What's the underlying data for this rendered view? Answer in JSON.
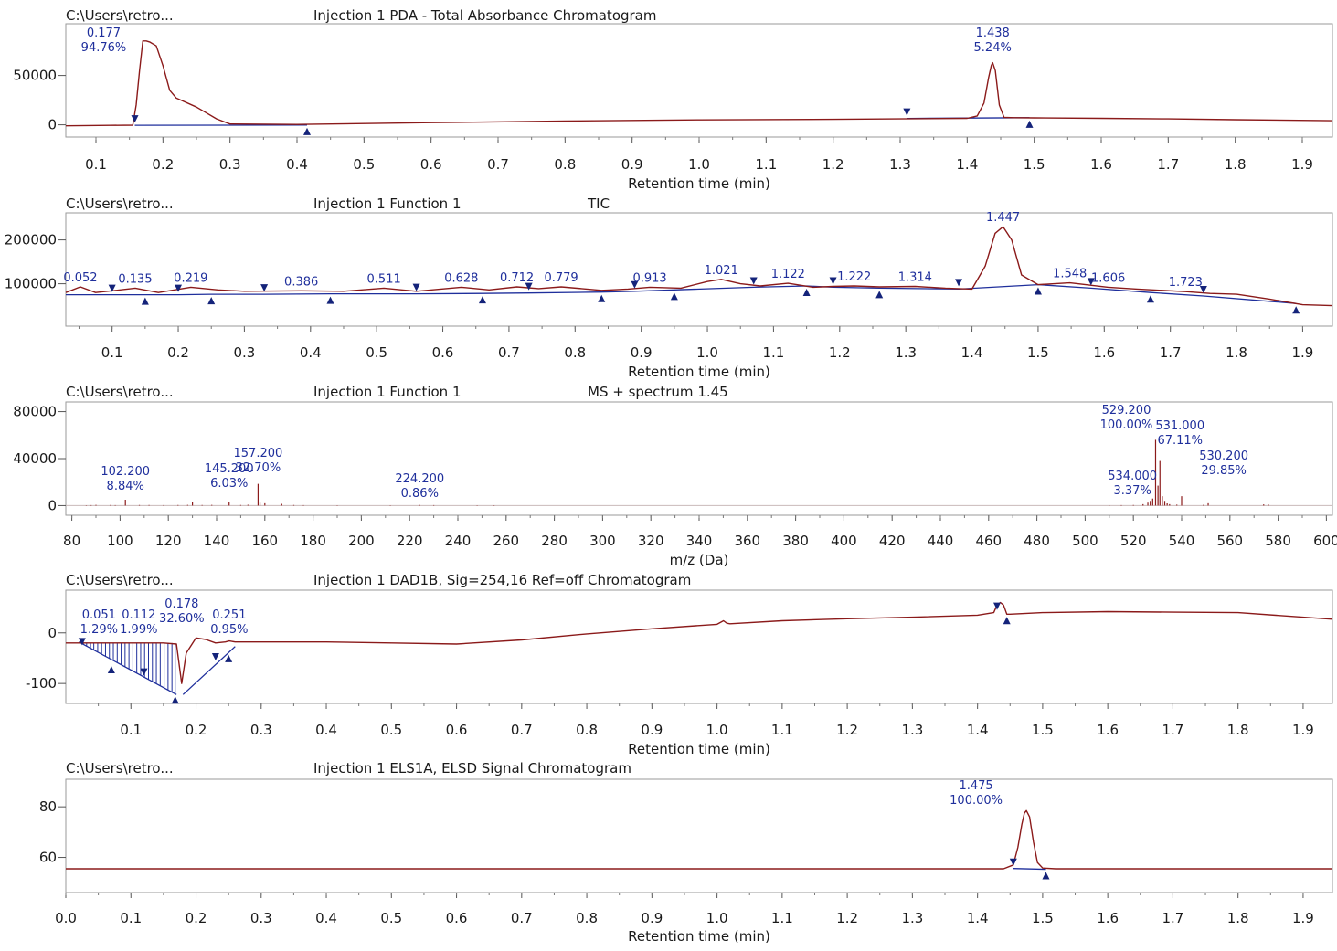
{
  "colors": {
    "trace": "#8b1a1a",
    "baseline": "#1f2f9c",
    "marker": "#14237a",
    "annotation": "#1f2f9c",
    "text": "#1a1a1a",
    "frame": "#9a9a9a"
  },
  "chart_data": [
    {
      "type": "line",
      "path": "C:\\Users\\retro...",
      "title": "Injection 1  PDA - Total Absorbance Chromatogram",
      "xlabel": "Retention time (min)",
      "xlim": [
        0.055,
        1.945
      ],
      "ylim": [
        -5000,
        95000
      ],
      "xticks": [
        "0.1",
        "0.2",
        "0.3",
        "0.4",
        "0.5",
        "0.6",
        "0.7",
        "0.8",
        "0.9",
        "1.0",
        "1.1",
        "1.2",
        "1.3",
        "1.4",
        "1.5",
        "1.6",
        "1.7",
        "1.8",
        "1.9"
      ],
      "yticks": [
        "0",
        "50000"
      ],
      "x": [
        0.055,
        0.12,
        0.155,
        0.16,
        0.165,
        0.17,
        0.175,
        0.18,
        0.19,
        0.2,
        0.21,
        0.22,
        0.25,
        0.28,
        0.3,
        0.4,
        0.6,
        0.8,
        1.0,
        1.2,
        1.4,
        1.415,
        1.425,
        1.432,
        1.436,
        1.438,
        1.442,
        1.448,
        1.455,
        1.47,
        1.5,
        1.6,
        1.7,
        1.8,
        1.945
      ],
      "y": [
        -1000,
        -600,
        -400,
        20000,
        55000,
        85000,
        85000,
        84000,
        80000,
        60000,
        35000,
        27000,
        18000,
        6000,
        800,
        400,
        2200,
        3800,
        5000,
        5600,
        6600,
        9000,
        22000,
        48000,
        60000,
        63000,
        55000,
        20000,
        7500,
        7200,
        7000,
        6600,
        6000,
        5200,
        4200
      ],
      "baselines": [
        {
          "x": [
            0.158,
            0.415
          ],
          "y": [
            -500,
            -300
          ]
        },
        {
          "x": [
            1.31,
            1.493
          ],
          "y": [
            6500,
            7200
          ]
        }
      ],
      "markers": [
        {
          "x": 0.158,
          "y": -500
        },
        {
          "x": 0.415,
          "y": -300
        },
        {
          "x": 1.31,
          "y": 6500
        },
        {
          "x": 1.493,
          "y": 7200
        }
      ],
      "annotations": [
        {
          "label": "0.177",
          "sub": "94.76%",
          "x": 0.177
        },
        {
          "label": "1.438",
          "sub": "5.24%",
          "x": 1.438
        }
      ]
    },
    {
      "type": "line",
      "path": "C:\\Users\\retro...",
      "title": "Injection 1 Function 1",
      "title2": "TIC",
      "xlabel": "Retention time (min)",
      "xlim": [
        0.03,
        1.945
      ],
      "ylim": [
        20000,
        245000
      ],
      "xticks": [
        "0.1",
        "0.2",
        "0.3",
        "0.4",
        "0.5",
        "0.6",
        "0.7",
        "0.8",
        "0.9",
        "1.0",
        "1.1",
        "1.2",
        "1.3",
        "1.4",
        "1.5",
        "1.6",
        "1.7",
        "1.8",
        "1.9"
      ],
      "yticks": [
        "100000",
        "200000"
      ],
      "x": [
        0.03,
        0.052,
        0.075,
        0.1,
        0.135,
        0.17,
        0.219,
        0.26,
        0.3,
        0.386,
        0.45,
        0.511,
        0.56,
        0.628,
        0.67,
        0.712,
        0.745,
        0.779,
        0.84,
        0.88,
        0.913,
        0.96,
        1.0,
        1.021,
        1.05,
        1.08,
        1.122,
        1.16,
        1.19,
        1.222,
        1.26,
        1.314,
        1.36,
        1.4,
        1.42,
        1.435,
        1.447,
        1.46,
        1.475,
        1.5,
        1.548,
        1.606,
        1.65,
        1.723,
        1.76,
        1.8,
        1.85,
        1.9,
        1.945
      ],
      "y": [
        80000,
        93000,
        80000,
        84000,
        90000,
        80000,
        92000,
        86000,
        83000,
        84000,
        83000,
        90000,
        83000,
        92000,
        86000,
        93000,
        89000,
        93000,
        85000,
        88000,
        92000,
        90000,
        105000,
        110000,
        100000,
        95000,
        101000,
        92000,
        94000,
        95000,
        93000,
        94000,
        90000,
        88000,
        140000,
        215000,
        230000,
        200000,
        120000,
        98000,
        102000,
        92000,
        88000,
        82000,
        78000,
        76000,
        65000,
        52000,
        50000
      ],
      "baselines": [
        {
          "x": [
            0.03,
            0.1,
            0.15,
            0.2,
            0.25,
            0.33,
            0.43,
            0.56,
            0.66,
            0.73,
            0.84,
            0.89,
            0.95,
            1.07,
            1.15,
            1.19,
            1.26,
            1.38,
            1.5,
            1.58,
            1.67,
            1.75,
            1.89
          ],
          "y": [
            75000,
            75000,
            75000,
            75000,
            76000,
            76000,
            77000,
            77000,
            78000,
            79000,
            81000,
            83000,
            86000,
            92000,
            95000,
            92000,
            90000,
            88000,
            98000,
            90000,
            80000,
            72000,
            55000
          ]
        }
      ],
      "markers": [
        {
          "x": 0.1,
          "y": 75000
        },
        {
          "x": 0.15,
          "y": 75000
        },
        {
          "x": 0.2,
          "y": 75000
        },
        {
          "x": 0.25,
          "y": 76000
        },
        {
          "x": 0.33,
          "y": 76000
        },
        {
          "x": 0.43,
          "y": 77000
        },
        {
          "x": 0.56,
          "y": 77000
        },
        {
          "x": 0.66,
          "y": 78000
        },
        {
          "x": 0.73,
          "y": 79000
        },
        {
          "x": 0.84,
          "y": 81000
        },
        {
          "x": 0.89,
          "y": 83000
        },
        {
          "x": 0.95,
          "y": 86000
        },
        {
          "x": 1.07,
          "y": 92000
        },
        {
          "x": 1.15,
          "y": 95000
        },
        {
          "x": 1.19,
          "y": 92000
        },
        {
          "x": 1.26,
          "y": 90000
        },
        {
          "x": 1.38,
          "y": 88000
        },
        {
          "x": 1.5,
          "y": 98000
        },
        {
          "x": 1.58,
          "y": 90000
        },
        {
          "x": 1.67,
          "y": 80000
        },
        {
          "x": 1.75,
          "y": 72000
        },
        {
          "x": 1.89,
          "y": 55000
        }
      ],
      "annotations": [
        {
          "label": "0.052",
          "x": 0.052
        },
        {
          "label": "0.135",
          "x": 0.135
        },
        {
          "label": "0.219",
          "x": 0.219
        },
        {
          "label": "0.386",
          "x": 0.386
        },
        {
          "label": "0.511",
          "x": 0.511
        },
        {
          "label": "0.628",
          "x": 0.628
        },
        {
          "label": "0.712",
          "x": 0.712
        },
        {
          "label": "0.779",
          "x": 0.779
        },
        {
          "label": "0.913",
          "x": 0.913
        },
        {
          "label": "1.021",
          "x": 1.021
        },
        {
          "label": "1.122",
          "x": 1.122
        },
        {
          "label": "1.222",
          "x": 1.222
        },
        {
          "label": "1.314",
          "x": 1.314
        },
        {
          "label": "1.447",
          "x": 1.447
        },
        {
          "label": "1.548",
          "x": 1.548
        },
        {
          "label": "1.606",
          "x": 1.606
        },
        {
          "label": "1.723",
          "x": 1.723
        }
      ]
    },
    {
      "type": "bar",
      "path": "C:\\Users\\retro...",
      "title": "Injection 1 Function 1",
      "title2": "MS + spectrum 1.45",
      "xlabel": "m/z (Da)",
      "xlim": [
        77.5,
        602.5
      ],
      "ylim": [
        -2000,
        82000
      ],
      "xticks": [
        "80",
        "100",
        "120",
        "140",
        "160",
        "180",
        "200",
        "220",
        "240",
        "260",
        "280",
        "300",
        "320",
        "340",
        "360",
        "380",
        "400",
        "420",
        "440",
        "460",
        "480",
        "500",
        "520",
        "540",
        "560",
        "580",
        "600"
      ],
      "yticks": [
        "0",
        "40000",
        "80000"
      ],
      "x": [
        86,
        88,
        90,
        96,
        98,
        102.2,
        108,
        112,
        118,
        124,
        128,
        130,
        134,
        138,
        145.2,
        150,
        153,
        157.2,
        158,
        160,
        167,
        172,
        176,
        190,
        212,
        224.2,
        230,
        248,
        255,
        510,
        515,
        520,
        524,
        526,
        527,
        528,
        529.2,
        530.2,
        531,
        532,
        533,
        534,
        535,
        538,
        540,
        549,
        551,
        574,
        576
      ],
      "y": [
        300,
        400,
        600,
        500,
        400,
        5000,
        500,
        500,
        400,
        500,
        600,
        3000,
        500,
        600,
        3400,
        500,
        700,
        18500,
        2500,
        2000,
        1500,
        500,
        400,
        300,
        300,
        500,
        400,
        300,
        300,
        300,
        400,
        500,
        1200,
        2500,
        4000,
        6000,
        56000,
        17000,
        38000,
        8000,
        4000,
        1900,
        1200,
        800,
        8000,
        600,
        2000,
        1000,
        800
      ],
      "annotations": [
        {
          "label": "102.200",
          "sub": "8.84%",
          "x": 102.2
        },
        {
          "label": "145.200",
          "sub": "6.03%",
          "x": 145.2
        },
        {
          "label": "157.200",
          "sub": "32.70%",
          "x": 157.2
        },
        {
          "label": "224.200",
          "sub": "0.86%",
          "x": 224.2
        },
        {
          "label": "529.200",
          "sub": "100.00%",
          "x": 529.2
        },
        {
          "label": "531.000",
          "sub": "67.11%",
          "x": 531
        },
        {
          "label": "530.200",
          "sub": "29.85%",
          "x": 530.2
        },
        {
          "label": "534.000",
          "sub": "3.37%",
          "x": 534
        }
      ]
    },
    {
      "type": "line",
      "path": "C:\\Users\\retro...",
      "title": "Injection 1 DAD1B, Sig=254,16  Ref=off Chromatogram",
      "xlabel": "Retention time (min)",
      "xlim": [
        0.0,
        1.945
      ],
      "ylim": [
        -125,
        70
      ],
      "xticks": [
        "0.1",
        "0.2",
        "0.3",
        "0.4",
        "0.5",
        "0.6",
        "0.7",
        "0.8",
        "0.9",
        "1.0",
        "1.1",
        "1.2",
        "1.3",
        "1.4",
        "1.5",
        "1.6",
        "1.7",
        "1.8",
        "1.9"
      ],
      "yticks": [
        "-100",
        "0"
      ],
      "x": [
        0,
        0.05,
        0.1,
        0.15,
        0.17,
        0.178,
        0.185,
        0.2,
        0.215,
        0.23,
        0.245,
        0.251,
        0.26,
        0.3,
        0.4,
        0.5,
        0.6,
        0.7,
        0.8,
        0.9,
        1.0,
        1.01,
        1.015,
        1.02,
        1.1,
        1.2,
        1.3,
        1.4,
        1.425,
        1.43,
        1.435,
        1.44,
        1.445,
        1.45,
        1.5,
        1.6,
        1.7,
        1.8,
        1.945
      ],
      "y": [
        -20,
        -20,
        -20,
        -20,
        -22,
        -100,
        -40,
        -10,
        -13,
        -20,
        -18,
        -16,
        -18,
        -18,
        -18,
        -20,
        -22,
        -14,
        -2,
        8,
        17,
        24,
        19,
        18,
        24,
        28,
        31,
        35,
        40,
        55,
        60,
        55,
        37,
        37,
        40,
        42,
        41,
        40,
        27
      ],
      "baselines": [
        {
          "x": [
            0.02,
            0.17
          ],
          "y": [
            -18,
            -122
          ]
        },
        {
          "x": [
            0.18,
            0.26
          ],
          "y": [
            -122,
            -27
          ]
        }
      ],
      "drops": [
        0.022,
        0.027,
        0.032,
        0.038,
        0.043,
        0.049,
        0.055,
        0.061,
        0.067,
        0.073,
        0.079,
        0.085,
        0.091,
        0.097,
        0.103,
        0.109,
        0.115,
        0.121,
        0.127,
        0.133,
        0.139,
        0.145,
        0.151,
        0.157,
        0.163,
        0.168
      ],
      "markers": [
        {
          "x": 0.025,
          "y": -30
        },
        {
          "x": 0.07,
          "y": -60
        },
        {
          "x": 0.12,
          "y": -90
        },
        {
          "x": 0.168,
          "y": -120
        },
        {
          "x": 0.23,
          "y": -60
        },
        {
          "x": 0.25,
          "y": -38
        },
        {
          "x": 1.43,
          "y": 40
        },
        {
          "x": 1.445,
          "y": 37
        }
      ],
      "annotations": [
        {
          "label": "0.051",
          "sub": "1.29%",
          "x": 0.051
        },
        {
          "label": "0.112",
          "sub": "1.99%",
          "x": 0.112
        },
        {
          "label": "0.178",
          "sub": "32.60%",
          "x": 0.178
        },
        {
          "label": "0.251",
          "sub": "0.95%",
          "x": 0.251
        }
      ]
    },
    {
      "type": "line",
      "path": "C:\\Users\\retro...",
      "title": "Injection 1 ELS1A, ELSD Signal Chromatogram",
      "xlabel": "Retention time (min)",
      "xlim": [
        0.0,
        1.945
      ],
      "ylim": [
        49,
        88
      ],
      "xticks": [
        "0.0",
        "0.1",
        "0.2",
        "0.3",
        "0.4",
        "0.5",
        "0.6",
        "0.7",
        "0.8",
        "0.9",
        "1.0",
        "1.1",
        "1.2",
        "1.3",
        "1.4",
        "1.5",
        "1.6",
        "1.7",
        "1.8",
        "1.9"
      ],
      "yticks": [
        "60",
        "80"
      ],
      "x": [
        0,
        1.44,
        1.455,
        1.462,
        1.468,
        1.472,
        1.475,
        1.48,
        1.486,
        1.492,
        1.5,
        1.52,
        1.945
      ],
      "y": [
        55.5,
        55.5,
        57,
        64,
        73,
        77.5,
        78.5,
        76,
        66,
        58,
        55.8,
        55.5,
        55.5
      ],
      "baselines": [
        {
          "x": [
            1.455,
            1.505
          ],
          "y": [
            55.6,
            55.3
          ]
        }
      ],
      "markers": [
        {
          "x": 1.455,
          "y": 55.6
        },
        {
          "x": 1.505,
          "y": 55.3
        }
      ],
      "annotations": [
        {
          "label": "1.475",
          "sub": "100.00%",
          "x": 1.475
        }
      ]
    }
  ]
}
